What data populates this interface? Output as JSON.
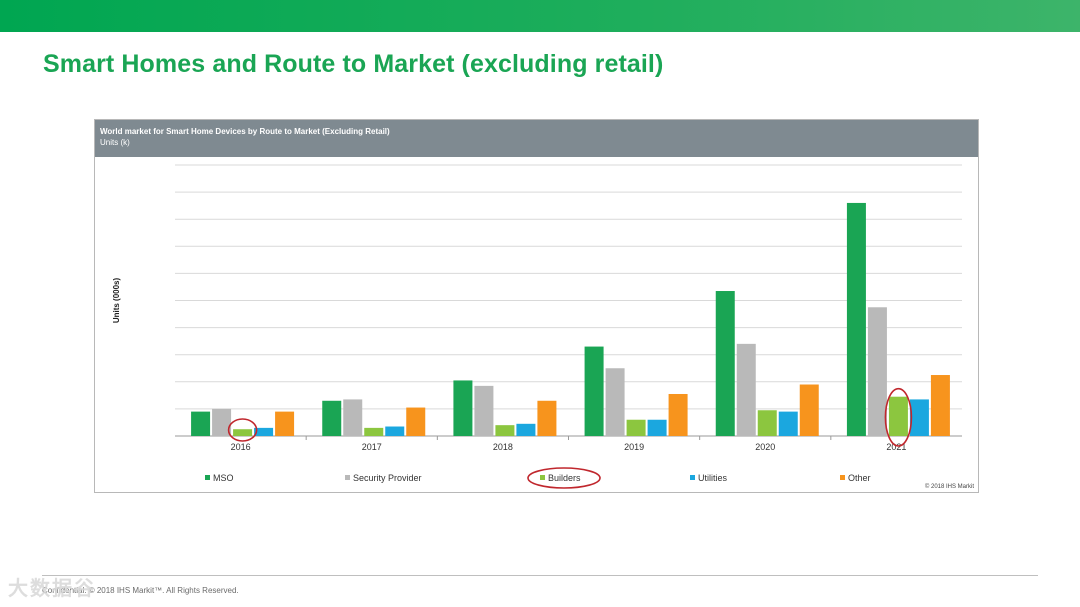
{
  "slide": {
    "title": "Smart Homes and Route to Market (excluding retail)",
    "footer": "Confidential. © 2018 IHS Markit™. All Rights Reserved.",
    "watermark": "大数据谷",
    "accent_color": "#1aa554"
  },
  "chart_data": {
    "type": "bar",
    "title": "World market for Smart Home Devices by Route to Market (Excluding Retail)",
    "subtitle": "Units (k)",
    "ylabel": "Units (000s)",
    "xlabel": "",
    "categories": [
      "2016",
      "2017",
      "2018",
      "2019",
      "2020",
      "2021"
    ],
    "ylim": [
      0,
      10
    ],
    "grid": true,
    "legend_position": "bottom",
    "series": [
      {
        "name": "MSO",
        "color": "#1aa554",
        "values": [
          0.9,
          1.3,
          2.05,
          3.3,
          5.35,
          8.6
        ]
      },
      {
        "name": "Security Provider",
        "color": "#b9b9b9",
        "values": [
          1.0,
          1.35,
          1.85,
          2.5,
          3.4,
          4.75
        ]
      },
      {
        "name": "Builders",
        "color": "#8cc63f",
        "values": [
          0.25,
          0.3,
          0.4,
          0.6,
          0.95,
          1.45
        ]
      },
      {
        "name": "Utilities",
        "color": "#1ba7df",
        "values": [
          0.3,
          0.35,
          0.45,
          0.6,
          0.9,
          1.35
        ]
      },
      {
        "name": "Other",
        "color": "#f7941d",
        "values": [
          0.9,
          1.05,
          1.3,
          1.55,
          1.9,
          2.25
        ]
      }
    ],
    "highlighted": [
      {
        "series": "Builders",
        "category": "2016"
      },
      {
        "series": "Builders",
        "category": "2021"
      },
      {
        "legend": "Builders"
      }
    ],
    "source": "© 2018 IHS Markit"
  }
}
